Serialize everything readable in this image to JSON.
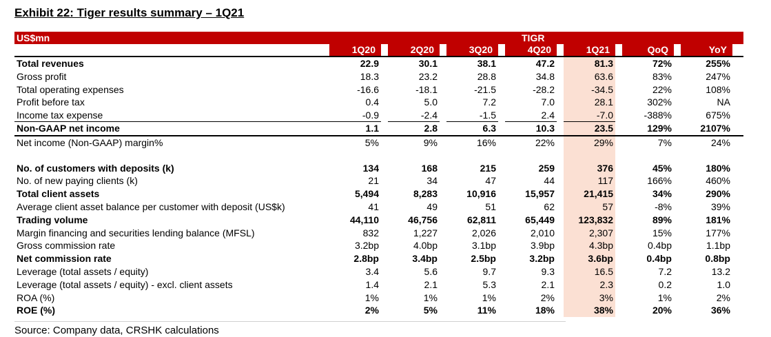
{
  "title": "Exhibit 22: Tiger results summary – 1Q21",
  "header": {
    "unit": "US$mn",
    "group": "TIGR",
    "columns": [
      "1Q20",
      "2Q20",
      "3Q20",
      "4Q20",
      "1Q21",
      "QoQ",
      "YoY"
    ]
  },
  "rows": [
    {
      "label": "Total revenues",
      "bold": true,
      "values": [
        "22.9",
        "30.1",
        "38.1",
        "47.2",
        "81.3",
        "72%",
        "255%"
      ]
    },
    {
      "label": "Gross profit",
      "bold": false,
      "values": [
        "18.3",
        "23.2",
        "28.8",
        "34.8",
        "63.6",
        "83%",
        "247%"
      ]
    },
    {
      "label": "Total operating expenses",
      "bold": false,
      "values": [
        "-16.6",
        "-18.1",
        "-21.5",
        "-28.2",
        "-34.5",
        "22%",
        "108%"
      ]
    },
    {
      "label": "Profit before tax",
      "bold": false,
      "values": [
        "0.4",
        "5.0",
        "7.2",
        "7.0",
        "28.1",
        "302%",
        "NA"
      ]
    },
    {
      "label": "Income tax expense",
      "bold": false,
      "values": [
        "-0.9",
        "-2.4",
        "-1.5",
        "2.4",
        "-7.0",
        "-388%",
        "675%"
      ]
    },
    {
      "label": "Non-GAAP net income",
      "bold": true,
      "values": [
        "1.1",
        "2.8",
        "6.3",
        "10.3",
        "23.5",
        "129%",
        "2107%"
      ]
    },
    {
      "label": "Net income (Non-GAAP) margin%",
      "bold": false,
      "values": [
        "5%",
        "9%",
        "16%",
        "22%",
        "29%",
        "7%",
        "24%"
      ]
    },
    {
      "label": "No. of customers with deposits (k)",
      "bold": true,
      "values": [
        "134",
        "168",
        "215",
        "259",
        "376",
        "45%",
        "180%"
      ]
    },
    {
      "label": "No. of new paying clients (k)",
      "bold": false,
      "values": [
        "21",
        "34",
        "47",
        "44",
        "117",
        "166%",
        "460%"
      ]
    },
    {
      "label": "Total client assets",
      "bold": true,
      "values": [
        "5,494",
        "8,283",
        "10,916",
        "15,957",
        "21,415",
        "34%",
        "290%"
      ]
    },
    {
      "label": "Average client asset balance per customer with deposit (US$k)",
      "bold": false,
      "values": [
        "41",
        "49",
        "51",
        "62",
        "57",
        "-8%",
        "39%"
      ]
    },
    {
      "label": "Trading volume",
      "bold": true,
      "values": [
        "44,110",
        "46,756",
        "62,811",
        "65,449",
        "123,832",
        "89%",
        "181%"
      ]
    },
    {
      "label": "Margin financing and securities lending balance (MFSL)",
      "bold": false,
      "values": [
        "832",
        "1,227",
        "2,026",
        "2,010",
        "2,307",
        "15%",
        "177%"
      ]
    },
    {
      "label": "Gross commission rate",
      "bold": false,
      "values": [
        "3.2bp",
        "4.0bp",
        "3.1bp",
        "3.9bp",
        "4.3bp",
        "0.4bp",
        "1.1bp"
      ]
    },
    {
      "label": "Net commission rate",
      "bold": true,
      "values": [
        "2.8bp",
        "3.4bp",
        "2.5bp",
        "3.2bp",
        "3.6bp",
        "0.4bp",
        "0.8bp"
      ]
    },
    {
      "label": "Leverage (total assets / equity)",
      "bold": false,
      "values": [
        "3.4",
        "5.6",
        "9.7",
        "9.3",
        "16.5",
        "7.2",
        "13.2"
      ]
    },
    {
      "label": "Leverage (total assets / equity) - excl. client assets",
      "bold": false,
      "values": [
        "1.4",
        "2.1",
        "5.3",
        "2.1",
        "2.3",
        "0.2",
        "1.0"
      ]
    },
    {
      "label": "ROA (%)",
      "bold": false,
      "values": [
        "1%",
        "1%",
        "1%",
        "2%",
        "3%",
        "1%",
        "2%"
      ]
    },
    {
      "label": "ROE (%)",
      "bold": true,
      "values": [
        "2%",
        "5%",
        "11%",
        "18%",
        "38%",
        "20%",
        "36%"
      ]
    }
  ],
  "source": "Source: Company data, CRSHK calculations",
  "colors": {
    "header_red": "#c00000",
    "highlight": "#fbe0d3"
  }
}
